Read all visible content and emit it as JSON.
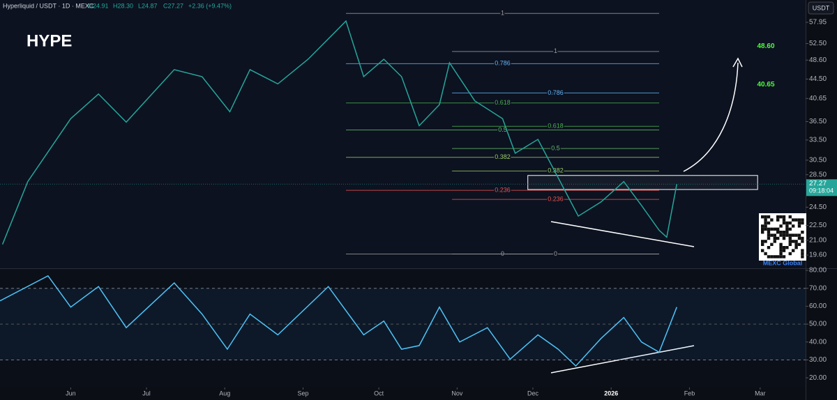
{
  "chart_data": [
    {
      "type": "line",
      "title": "HYPE",
      "header": {
        "symbol": "Hyperliquid / USDT · 1D · MEXC",
        "ohlc": [
          {
            "value": 24.91,
            "label": "O24.91"
          },
          {
            "value": 28.3,
            "label": "H28.30"
          },
          {
            "value": 24.87,
            "label": "L24.87"
          },
          {
            "value": 27.27,
            "label": "C27.27"
          }
        ],
        "change": {
          "value": 2.36,
          "label": "+2.36 (+9.47%)"
        }
      },
      "currency": "USDT",
      "log_scale": true,
      "xlim": [
        -28,
        291
      ],
      "ylim": [
        18.43,
        64.3
      ],
      "yticks": [
        57.95,
        {
          "value": 52.5,
          "label": "52.50"
        },
        {
          "value": 48.6,
          "label": "48.60"
        },
        {
          "value": 44.5,
          "label": "44.50"
        },
        40.65,
        {
          "value": 36.5,
          "label": "36.50"
        },
        {
          "value": 33.5,
          "label": "33.50"
        },
        {
          "value": 30.5,
          "label": "30.50"
        },
        {
          "value": 28.5,
          "label": "28.50"
        },
        {
          "value": 24.5,
          "label": "24.50"
        },
        {
          "value": 22.5,
          "label": "22.50"
        },
        {
          "value": 21,
          "label": "21.00"
        },
        {
          "value": 19.6,
          "label": "19.60"
        }
      ],
      "x": [
        -27,
        -17,
        0,
        11,
        22,
        41,
        52,
        63,
        71,
        82,
        94,
        105,
        109,
        116,
        124,
        131,
        138,
        146,
        150,
        160,
        171,
        176,
        185,
        193,
        201,
        210,
        219,
        226,
        233,
        236,
        240
      ],
      "values": [
        20.6,
        27.6,
        37.0,
        41.5,
        36.4,
        46.5,
        45.0,
        38.2,
        46.5,
        43.5,
        48.8,
        55.6,
        58.3,
        45.0,
        48.8,
        45.0,
        35.8,
        39.5,
        48.0,
        40.2,
        37.0,
        31.5,
        33.6,
        28.1,
        23.5,
        25.1,
        27.6,
        24.7,
        22.0,
        21.3,
        27.27
      ],
      "color": "#26a69a",
      "last_price": 27.27,
      "countdown": "09:18:04",
      "targets": [
        {
          "value": 48.6,
          "label": "48.60"
        },
        {
          "value": 40.65,
          "label": "40.65"
        }
      ],
      "fibs": [
        {
          "x": [
            109,
            233
          ],
          "levels": [
            {
              "ratio": "1",
              "value": 60.4,
              "color": "#9e9e9e"
            },
            {
              "ratio": "0.786",
              "value": 47.8,
              "color": "#64b5f6"
            },
            {
              "ratio": "0.618",
              "value": 39.8,
              "color": "#4caf50"
            },
            {
              "ratio": "0.5",
              "value": 35.1,
              "color": "#66bb6a"
            },
            {
              "ratio": "0.382",
              "value": 30.9,
              "color": "#9ccc65"
            },
            {
              "ratio": "0.236",
              "value": 26.5,
              "color": "#ef5350"
            },
            {
              "ratio": "0",
              "value": 19.7,
              "color": "#9e9e9e"
            }
          ]
        },
        {
          "x": [
            151,
            233
          ],
          "levels": [
            {
              "ratio": "1",
              "value": 50.6,
              "color": "#9e9e9e"
            },
            {
              "ratio": "0.786",
              "value": 41.7,
              "color": "#64b5f6"
            },
            {
              "ratio": "0.618",
              "value": 35.7,
              "color": "#4caf50"
            },
            {
              "ratio": "0.5",
              "value": 32.2,
              "color": "#66bb6a"
            },
            {
              "ratio": "0.382",
              "value": 29.0,
              "color": "#9ccc65"
            },
            {
              "ratio": "0.236",
              "value": 25.4,
              "color": "#ef5350"
            },
            {
              "ratio": "0",
              "value": 19.7,
              "color": "#9e9e9e"
            }
          ]
        }
      ],
      "zone": [
        26.6,
        28.4
      ],
      "zone_x": [
        181,
        272
      ],
      "watermark": "MEXC Global"
    },
    {
      "type": "line",
      "xlim": [
        -28,
        291
      ],
      "ylim": [
        15,
        80.8
      ],
      "yticks": [
        {
          "value": 80,
          "label": "80.00"
        },
        {
          "value": 70,
          "label": "70.00"
        },
        {
          "value": 60,
          "label": "60.00"
        },
        {
          "value": 50,
          "label": "50.00"
        },
        {
          "value": 40,
          "label": "40.00"
        },
        {
          "value": 30,
          "label": "30.00"
        },
        {
          "value": 20,
          "label": "20.00"
        }
      ],
      "xticks": [
        {
          "value": 0,
          "label": "Jun"
        },
        {
          "value": 30,
          "label": "Jul"
        },
        {
          "value": 61,
          "label": "Aug"
        },
        {
          "value": 92,
          "label": "Sep"
        },
        {
          "value": 122,
          "label": "Oct"
        },
        {
          "value": 153,
          "label": "Nov"
        },
        {
          "value": 183,
          "label": "Dec"
        },
        {
          "value": 214,
          "label": "2026"
        },
        {
          "value": 245,
          "label": "Feb"
        },
        {
          "value": 273,
          "label": "Mar"
        }
      ],
      "x": [
        -28,
        -9,
        0,
        11,
        22,
        41,
        52,
        62,
        71,
        82,
        102,
        116,
        124,
        131,
        138,
        146,
        154,
        165,
        174,
        185,
        193,
        200,
        210,
        219,
        226,
        233,
        240
      ],
      "values": [
        63,
        77,
        59.5,
        71,
        48,
        73,
        55.6,
        36,
        55.6,
        44,
        71,
        44,
        51.7,
        36,
        38,
        59.5,
        40,
        48,
        30.4,
        44,
        36,
        26.6,
        42,
        53.7,
        40,
        34.3,
        59.5
      ],
      "color": "#4fc3f7",
      "band": [
        30,
        70
      ],
      "midline": 50
    }
  ]
}
